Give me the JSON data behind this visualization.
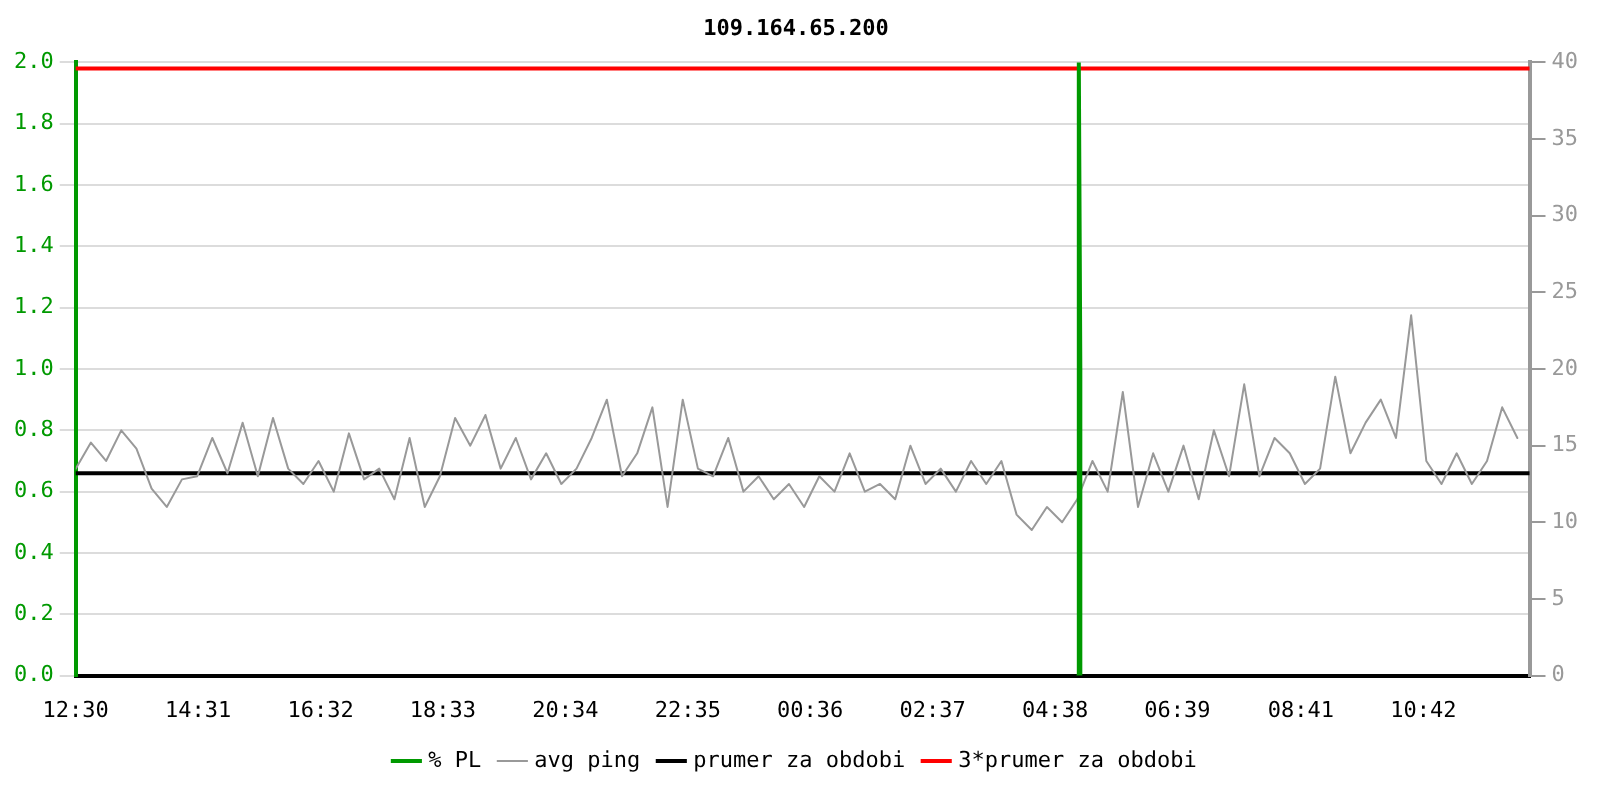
{
  "chart_data": {
    "type": "line",
    "title": "109.164.65.200",
    "xlim": [
      "--01-01T12:30",
      "--01-02T12:27"
    ],
    "xticks": [
      {
        "value": "--01-01T12:30",
        "label": "12:30"
      },
      {
        "value": "--01-01T14:31",
        "label": "14:31"
      },
      {
        "value": "--01-01T16:32",
        "label": "16:32"
      },
      {
        "value": "--01-01T18:33",
        "label": "18:33"
      },
      {
        "value": "--01-01T20:34",
        "label": "20:34"
      },
      {
        "value": "--01-01T22:35",
        "label": "22:35"
      },
      {
        "value": "--01-02T00:36",
        "label": "00:36"
      },
      {
        "value": "--01-02T02:37",
        "label": "02:37"
      },
      {
        "value": "--01-02T04:38",
        "label": "04:38"
      },
      {
        "value": "--01-02T06:39",
        "label": "06:39"
      },
      {
        "value": "--01-02T08:41",
        "label": "08:41"
      },
      {
        "value": "--01-02T10:42",
        "label": "10:42"
      }
    ],
    "ylim": [
      0,
      2
    ],
    "yticks": [
      {
        "value": 0,
        "label": "0.0"
      },
      {
        "value": 0.2,
        "label": "0.2"
      },
      {
        "value": 0.4,
        "label": "0.4"
      },
      {
        "value": 0.6,
        "label": "0.6"
      },
      {
        "value": 0.8,
        "label": "0.8"
      },
      {
        "value": 1,
        "label": "1.0"
      },
      {
        "value": 1.2,
        "label": "1.2"
      },
      {
        "value": 1.4,
        "label": "1.4"
      },
      {
        "value": 1.6,
        "label": "1.6"
      },
      {
        "value": 1.8,
        "label": "1.8"
      },
      {
        "value": 2,
        "label": "2.0"
      }
    ],
    "y2lim": [
      0,
      40
    ],
    "y2ticks": [
      0,
      5,
      10,
      15,
      20,
      25,
      30,
      35,
      40
    ],
    "grid": "y",
    "legend": "bottom",
    "marker": "none",
    "line_style": "solid",
    "series": [
      {
        "name": "% PL",
        "color": "#009900",
        "axis": "y",
        "x": [
          "--01-02T05:01",
          "--01-02T05:01",
          "--01-02T05:02",
          "--01-02T05:03",
          "--01-02T05:03"
        ],
        "values": [
          0,
          1.0,
          2.0,
          1.0,
          0
        ]
      },
      {
        "name": "avg ping",
        "color": "#999999",
        "axis": "y2",
        "x": [
          "--01-01T12:30",
          "--01-01T12:45",
          "--01-01T13:00",
          "--01-01T13:15",
          "--01-01T13:30",
          "--01-01T13:45",
          "--01-01T14:00",
          "--01-01T14:15",
          "--01-01T14:30",
          "--01-01T14:45",
          "--01-01T15:00",
          "--01-01T15:15",
          "--01-01T15:30",
          "--01-01T15:45",
          "--01-01T16:00",
          "--01-01T16:15",
          "--01-01T16:30",
          "--01-01T16:45",
          "--01-01T17:00",
          "--01-01T17:15",
          "--01-01T17:30",
          "--01-01T17:45",
          "--01-01T18:00",
          "--01-01T18:15",
          "--01-01T18:30",
          "--01-01T18:45",
          "--01-01T19:00",
          "--01-01T19:15",
          "--01-01T19:30",
          "--01-01T19:45",
          "--01-01T20:00",
          "--01-01T20:15",
          "--01-01T20:30",
          "--01-01T20:45",
          "--01-01T21:00",
          "--01-01T21:15",
          "--01-01T21:30",
          "--01-01T21:45",
          "--01-01T22:00",
          "--01-01T22:15",
          "--01-01T22:30",
          "--01-01T22:45",
          "--01-01T23:00",
          "--01-01T23:15",
          "--01-01T23:30",
          "--01-01T23:45",
          "--01-02T00:00",
          "--01-02T00:15",
          "--01-02T00:30",
          "--01-02T00:45",
          "--01-02T01:00",
          "--01-02T01:15",
          "--01-02T01:30",
          "--01-02T01:45",
          "--01-02T02:00",
          "--01-02T02:15",
          "--01-02T02:30",
          "--01-02T02:45",
          "--01-02T03:00",
          "--01-02T03:15",
          "--01-02T03:30",
          "--01-02T03:45",
          "--01-02T04:00",
          "--01-02T04:15",
          "--01-02T04:30",
          "--01-02T04:45",
          "--01-02T05:00",
          "--01-02T05:15",
          "--01-02T05:30",
          "--01-02T05:45",
          "--01-02T06:00",
          "--01-02T06:15",
          "--01-02T06:30",
          "--01-02T06:45",
          "--01-02T07:00",
          "--01-02T07:15",
          "--01-02T07:30",
          "--01-02T07:45",
          "--01-02T08:00",
          "--01-02T08:15",
          "--01-02T08:30",
          "--01-02T08:45",
          "--01-02T09:00",
          "--01-02T09:15",
          "--01-02T09:30",
          "--01-02T09:45",
          "--01-02T10:00",
          "--01-02T10:15",
          "--01-02T10:30",
          "--01-02T10:45",
          "--01-02T11:00",
          "--01-02T11:15",
          "--01-02T11:30",
          "--01-02T11:45",
          "--01-02T12:00",
          "--01-02T12:15"
        ],
        "values": [
          13.5,
          15.2,
          14.0,
          16.0,
          14.8,
          12.2,
          11.0,
          12.8,
          13.0,
          15.5,
          13.2,
          16.5,
          13.0,
          16.8,
          13.5,
          12.5,
          14.0,
          12.0,
          15.8,
          12.8,
          13.5,
          11.5,
          15.5,
          11.0,
          13.0,
          16.8,
          15.0,
          17.0,
          13.5,
          15.5,
          12.8,
          14.5,
          12.5,
          13.5,
          15.5,
          18.0,
          13.0,
          14.5,
          17.5,
          11.0,
          18.0,
          13.5,
          13.0,
          15.5,
          12.0,
          13.0,
          11.5,
          12.5,
          11.0,
          13.0,
          12.0,
          14.5,
          12.0,
          12.5,
          11.5,
          15.0,
          12.5,
          13.5,
          12.0,
          14.0,
          12.5,
          14.0,
          10.5,
          9.5,
          11.0,
          10.0,
          11.5,
          14.0,
          12.0,
          18.5,
          11.0,
          14.5,
          12.0,
          15.0,
          11.5,
          16.0,
          13.0,
          19.0,
          13.0,
          15.5,
          14.5,
          12.5,
          13.5,
          19.5,
          14.5,
          16.5,
          18.0,
          15.5,
          23.5,
          14.0,
          12.5,
          14.5,
          12.5,
          14.0,
          17.5,
          15.5
        ]
      },
      {
        "name": "prumer za obdobi",
        "color": "#000000",
        "axis": "y2",
        "x": [
          "--01-01T12:30",
          "--01-02T12:27"
        ],
        "values": [
          13.2,
          13.2
        ]
      },
      {
        "name": "3*prumer za obdobi",
        "color": "#ff0000",
        "axis": "y2",
        "x": [
          "--01-01T12:30",
          "--01-02T12:27"
        ],
        "values": [
          39.6,
          39.6
        ]
      }
    ]
  }
}
